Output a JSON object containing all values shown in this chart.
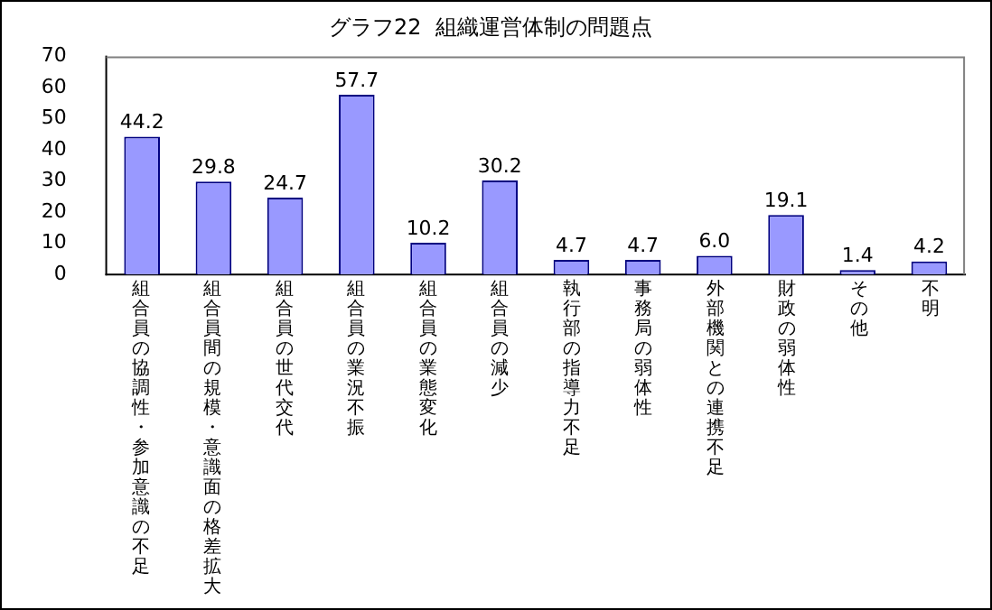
{
  "chart_data": {
    "type": "bar",
    "title": "グラフ22  組織運営体制の問題点",
    "categories": [
      "組合員の協調性・参加意識の不足",
      "組合員間の規模・意識面の格差拡大",
      "組合員の世代交代",
      "組合員の業況不振",
      "組合員の業態変化",
      "組合員の減少",
      "執行部の指導力不足",
      "事務局の弱体性",
      "外部機関との連携不足",
      "財政の弱体性",
      "その他",
      "不明"
    ],
    "values": [
      44.2,
      29.8,
      24.7,
      57.7,
      10.2,
      30.2,
      4.7,
      4.7,
      6.0,
      19.1,
      1.4,
      4.2
    ],
    "value_labels": [
      "44.2",
      "29.8",
      "24.7",
      "57.7",
      "10.2",
      "30.2",
      "4.7",
      "4.7",
      "6.0",
      "19.1",
      "1.4",
      "4.2"
    ],
    "color": "#9999ff",
    "ylim": [
      0,
      70
    ],
    "yticks": [
      0,
      10,
      20,
      30,
      40,
      50,
      60,
      70
    ],
    "grid": false,
    "legend": false
  }
}
